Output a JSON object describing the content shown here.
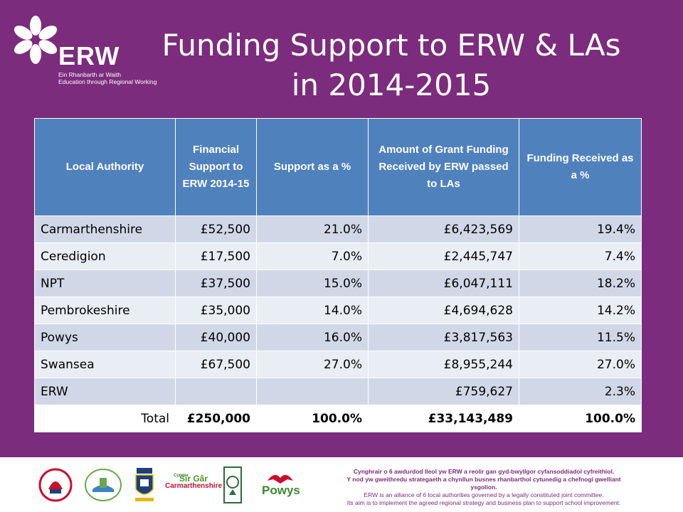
{
  "slide": {
    "title_line1": "Funding Support to ERW & LAs",
    "title_line2": "in 2014-2015"
  },
  "logo": {
    "wordmark": "ERW",
    "sub_line1": "Ein Rhanbarth ar Waith",
    "sub_line2": "Education through Regional Working"
  },
  "table": {
    "headers": [
      "Local Authority",
      "Financial Support to ERW 2014-15",
      "Support as a %",
      "Amount of Grant Funding Received by ERW passed to LAs",
      "Funding Received as a %"
    ],
    "rows": [
      {
        "authority": "Carmarthenshire",
        "support": "£52,500",
        "support_pct": "21.0%",
        "grant": "£6,423,569",
        "grant_pct": "19.4%"
      },
      {
        "authority": "Ceredigion",
        "support": "£17,500",
        "support_pct": "7.0%",
        "grant": "£2,445,747",
        "grant_pct": "7.4%"
      },
      {
        "authority": "NPT",
        "support": "£37,500",
        "support_pct": "15.0%",
        "grant": "£6,047,111",
        "grant_pct": "18.2%"
      },
      {
        "authority": "Pembrokeshire",
        "support": "£35,000",
        "support_pct": "14.0%",
        "grant": "£4,694,628",
        "grant_pct": "14.2%"
      },
      {
        "authority": "Powys",
        "support": "£40,000",
        "support_pct": "16.0%",
        "grant": "£3,817,563",
        "grant_pct": "11.5%"
      },
      {
        "authority": "Swansea",
        "support": "£67,500",
        "support_pct": "27.0%",
        "grant": "£8,955,244",
        "grant_pct": "27.0%"
      },
      {
        "authority": "ERW",
        "support": "",
        "support_pct": "",
        "grant": "£759,627",
        "grant_pct": "2.3%"
      }
    ],
    "total": {
      "label": "Total",
      "support": "£250,000",
      "support_pct": "100.0%",
      "grant": "£33,143,489",
      "grant_pct": "100.0%"
    }
  },
  "footer": {
    "logos": [
      "city-swansea-logo-icon",
      "neath-port-talbot-logo-icon",
      "pembrokeshire-crest-icon",
      "carmarthenshire-logo-icon",
      "ceredigion-logo-icon",
      "powys-logo-icon"
    ],
    "sirgar_small": "Cyngor",
    "sirgar_main": "Sir Gâr",
    "sirgar_sub": "Carmarthenshire",
    "powys": "Powys",
    "line1": "Cynghrair o 6 awdurdod lleol yw ERW a reolir gan gyd-bwyllgor cyfansoddiadol cyfreithiol.",
    "line2": "Y nod yw gweithredu strategaeth a chynllun busnes rhanbarthol cytunedig a chefnogi gwelliant ysgolion.",
    "line3": "ERW is an alliance of 6 local authorities governed by a legally constituted joint committee.",
    "line4": "Its aim is to implement the agreed regional strategy and business plan to support school improvement."
  },
  "colors": {
    "background": "#7b2c7c",
    "header": "#4f81bd",
    "row_dark": "#d0d8e8",
    "row_light": "#e9edf4"
  }
}
